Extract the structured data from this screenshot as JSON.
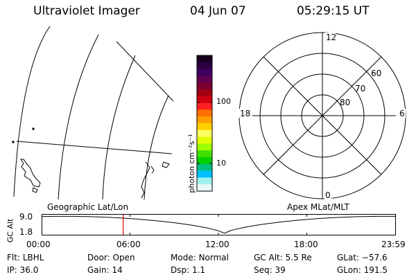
{
  "header": {
    "title": "Ultraviolet Imager",
    "date": "04 Jun 07",
    "time": "05:29:15 UT"
  },
  "geo_panel": {
    "label": "Geographic Lat/Lon"
  },
  "colorbar": {
    "unit_label": "photon cm⁻²s⁻¹",
    "ticks": [
      "100",
      "10"
    ],
    "colors": [
      "#1a0020",
      "#2a0040",
      "#400060",
      "#600050",
      "#7a0030",
      "#a00010",
      "#d00010",
      "#ff2020",
      "#ff7000",
      "#ffa000",
      "#ffd000",
      "#ffff60",
      "#e0ff00",
      "#a0ff00",
      "#40e000",
      "#00d000",
      "#00c080",
      "#00c0ff",
      "#a0f0f0",
      "#e8f8f8"
    ]
  },
  "polar_panel": {
    "label": "Apex MLat/MLT",
    "mlt_labels": {
      "top": "12",
      "right": "6",
      "bottom": "0",
      "left": "18"
    },
    "lat_labels": [
      "60",
      "70",
      "80"
    ]
  },
  "timeline": {
    "ylabel": "GC Alt",
    "yticks": [
      "9.0",
      "1.8"
    ],
    "xticks": [
      "00:00",
      "06:00",
      "12:00",
      "18:00",
      "23:59"
    ],
    "current_hour": 5.49,
    "line_color": "#dd0000"
  },
  "status": {
    "row1": [
      {
        "label": "Flt:",
        "value": "LBHL"
      },
      {
        "label": "Door:",
        "value": "Open"
      },
      {
        "label": "Mode:",
        "value": "Normal"
      },
      {
        "label": "GC Alt:",
        "value": "5.5 Re"
      },
      {
        "label": "GLat:",
        "value": "−57.6"
      }
    ],
    "row2": [
      {
        "label": "IP:",
        "value": "36.0"
      },
      {
        "label": "Gain:",
        "value": "14"
      },
      {
        "label": "Dsp:",
        "value": "1.1"
      },
      {
        "label": "Seq:",
        "value": "39"
      },
      {
        "label": "GLon:",
        "value": "191.5"
      }
    ]
  }
}
